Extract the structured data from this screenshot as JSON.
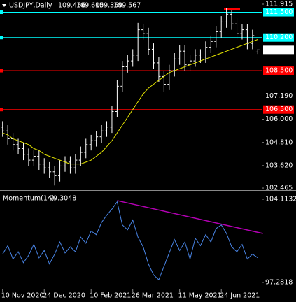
{
  "chart_data": [
    {
      "type": "ohlc",
      "title": "USDJPY,Daily",
      "categories": [
        "10 Nov 2020",
        null,
        null,
        null,
        null,
        null,
        null,
        null,
        "24 Dec 2020",
        null,
        null,
        null,
        null,
        null,
        null,
        null,
        null,
        "10 Feb 2021",
        null,
        null,
        null,
        null,
        null,
        null,
        null,
        "26 Mar 2021",
        null,
        null,
        null,
        null,
        null,
        null,
        null,
        null,
        "11 May 2021",
        null,
        null,
        null,
        null,
        null,
        null,
        null,
        "24 Jun 2021",
        null,
        null,
        null,
        null,
        null,
        null,
        null
      ],
      "open": [
        105.6,
        105.4,
        105.0,
        104.7,
        104.5,
        104.2,
        103.9,
        104.1,
        103.7,
        103.5,
        103.3,
        103.1,
        103.6,
        103.8,
        103.5,
        103.9,
        104.3,
        104.7,
        104.9,
        105.1,
        105.4,
        105.6,
        106.4,
        107.7,
        108.7,
        109.0,
        109.3,
        110.6,
        110.4,
        109.6,
        108.9,
        108.2,
        107.8,
        108.5,
        109.1,
        109.5,
        108.8,
        109.0,
        109.3,
        109.2,
        109.7,
        110.0,
        110.5,
        111.0,
        111.4,
        110.9,
        110.4,
        110.6,
        109.9,
        109.456
      ],
      "high": [
        105.9,
        105.7,
        105.3,
        105.0,
        104.8,
        104.5,
        104.4,
        104.4,
        104.0,
        103.8,
        103.6,
        103.9,
        104.1,
        104.1,
        104.2,
        104.6,
        105.0,
        105.2,
        105.4,
        105.7,
        105.9,
        106.7,
        108.0,
        109.0,
        109.3,
        109.6,
        110.95,
        110.9,
        110.7,
        109.9,
        109.2,
        108.5,
        108.8,
        109.4,
        109.8,
        109.8,
        109.3,
        109.6,
        109.6,
        110.0,
        110.3,
        110.8,
        111.3,
        111.7,
        111.6,
        111.2,
        110.9,
        110.9,
        110.6,
        109.605
      ],
      "low": [
        105.1,
        104.7,
        104.4,
        104.2,
        103.9,
        103.6,
        103.6,
        103.4,
        103.2,
        103.0,
        102.6,
        102.8,
        103.3,
        103.2,
        103.2,
        103.6,
        104.0,
        104.4,
        104.6,
        104.8,
        105.1,
        105.3,
        106.1,
        107.4,
        108.4,
        108.7,
        109.0,
        110.1,
        109.3,
        108.6,
        107.9,
        107.4,
        107.5,
        108.2,
        108.8,
        108.5,
        108.5,
        108.7,
        108.9,
        108.9,
        109.4,
        109.7,
        110.2,
        110.7,
        110.6,
        110.1,
        110.1,
        109.6,
        109.6,
        109.359
      ],
      "close": [
        105.4,
        105.0,
        104.7,
        104.5,
        104.2,
        103.9,
        104.1,
        103.7,
        103.5,
        103.3,
        103.1,
        103.6,
        103.8,
        103.5,
        103.9,
        104.3,
        104.7,
        104.9,
        105.1,
        105.4,
        105.6,
        106.4,
        107.7,
        108.7,
        109.0,
        109.3,
        110.6,
        110.4,
        109.6,
        108.9,
        108.2,
        107.8,
        108.5,
        109.1,
        109.5,
        108.8,
        109.0,
        109.3,
        109.2,
        109.7,
        110.0,
        110.5,
        111.0,
        111.4,
        110.9,
        110.4,
        110.6,
        109.9,
        110.3,
        109.567
      ],
      "color": "#ffffff",
      "moving_average": {
        "color": "#e6e600",
        "values": [
          105.3,
          105.2,
          105.0,
          104.9,
          104.8,
          104.7,
          104.5,
          104.4,
          104.2,
          104.1,
          104.0,
          103.9,
          103.8,
          103.7,
          103.7,
          103.7,
          103.8,
          103.9,
          104.1,
          104.3,
          104.6,
          104.9,
          105.3,
          105.7,
          106.1,
          106.5,
          106.9,
          107.3,
          107.6,
          107.8,
          108.0,
          108.2,
          108.4,
          108.5,
          108.6,
          108.7,
          108.8,
          108.9,
          109.0,
          109.1,
          109.2,
          109.3,
          109.4,
          109.5,
          109.6,
          109.7,
          109.8,
          109.9,
          110.0,
          110.1
        ]
      },
      "levels": [
        {
          "value": 111.5,
          "label": "111.500",
          "color": "#00ffff"
        },
        {
          "value": 110.2,
          "label": "110.200",
          "color": "#00ffff"
        },
        {
          "value": 108.5,
          "label": "108.500",
          "color": "#ff0000"
        },
        {
          "value": 106.5,
          "label": "106.500",
          "color": "#ff0000"
        }
      ],
      "ylim": [
        102.43,
        112.13
      ],
      "yticks": [
        111.915,
        {
          "value": 107.19,
          "label": "107.190"
        },
        {
          "value": 106.0,
          "label": "106.000"
        },
        {
          "value": 104.81,
          "label": "104.810"
        },
        {
          "value": 103.62,
          "label": "103.620"
        },
        102.465
      ]
    },
    {
      "type": "line",
      "title": "Momentum(14)",
      "values": [
        99.6,
        100.3,
        99.2,
        99.8,
        98.9,
        99.5,
        100.4,
        99.3,
        99.9,
        98.8,
        99.6,
        100.6,
        99.7,
        100.2,
        99.8,
        101.0,
        100.5,
        101.5,
        101.2,
        102.2,
        102.8,
        103.3,
        103.9,
        102.0,
        101.6,
        102.4,
        101.0,
        100.2,
        98.8,
        97.9,
        97.5,
        98.6,
        99.7,
        100.8,
        99.9,
        100.6,
        99.2,
        100.9,
        100.3,
        101.2,
        100.6,
        101.7,
        102.0,
        101.3,
        100.2,
        99.8,
        100.4,
        99.2,
        99.6,
        99.3048
      ],
      "color": "#4a86e8",
      "trendline": {
        "x": [
          22,
          50
        ],
        "values": [
          104.0,
          101.3
        ],
        "color": "#b400b4"
      },
      "ylim": [
        96.82,
        104.57
      ],
      "yticks": [
        104.1132,
        97.2818
      ]
    }
  ]
}
